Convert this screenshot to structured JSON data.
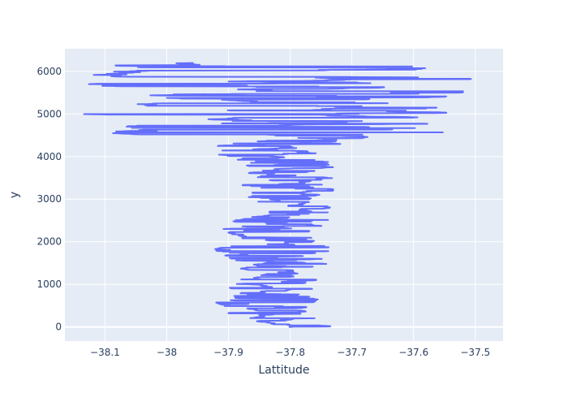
{
  "chart_data": {
    "type": "line",
    "xlabel": "Lattitude",
    "ylabel": "y",
    "xlim": [
      -38.165,
      -37.455
    ],
    "ylim": [
      -330,
      6530
    ],
    "xticks": [
      -38.1,
      -38,
      -37.9,
      -37.8,
      -37.7,
      -37.6,
      -37.5
    ],
    "xtick_labels": [
      "−38.1",
      "−38",
      "−37.9",
      "−37.8",
      "−37.7",
      "−37.6",
      "−37.5"
    ],
    "yticks": [
      0,
      1000,
      2000,
      3000,
      4000,
      5000,
      6000
    ],
    "ytick_labels": [
      "0",
      "1000",
      "2000",
      "3000",
      "4000",
      "5000",
      "6000"
    ],
    "grid": true,
    "series": [
      {
        "color": "#636efa",
        "n_points": 6200,
        "envelope": [
          {
            "y": 0,
            "lo": -37.86,
            "hi": -37.72
          },
          {
            "y": 200,
            "lo": -37.9,
            "hi": -37.75
          },
          {
            "y": 400,
            "lo": -37.93,
            "hi": -37.78
          },
          {
            "y": 600,
            "lo": -37.92,
            "hi": -37.76
          },
          {
            "y": 800,
            "lo": -37.88,
            "hi": -37.74
          },
          {
            "y": 1000,
            "lo": -37.91,
            "hi": -37.74
          },
          {
            "y": 1200,
            "lo": -37.9,
            "hi": -37.75
          },
          {
            "y": 1400,
            "lo": -37.88,
            "hi": -37.74
          },
          {
            "y": 1600,
            "lo": -37.9,
            "hi": -37.71
          },
          {
            "y": 1800,
            "lo": -37.93,
            "hi": -37.72
          },
          {
            "y": 2000,
            "lo": -37.87,
            "hi": -37.76
          },
          {
            "y": 2200,
            "lo": -37.92,
            "hi": -37.75
          },
          {
            "y": 2400,
            "lo": -37.92,
            "hi": -37.73
          },
          {
            "y": 2600,
            "lo": -37.86,
            "hi": -37.73
          },
          {
            "y": 2800,
            "lo": -37.84,
            "hi": -37.7
          },
          {
            "y": 3000,
            "lo": -37.86,
            "hi": -37.74
          },
          {
            "y": 3200,
            "lo": -37.89,
            "hi": -37.73
          },
          {
            "y": 3400,
            "lo": -37.87,
            "hi": -37.73
          },
          {
            "y": 3600,
            "lo": -37.88,
            "hi": -37.73
          },
          {
            "y": 3800,
            "lo": -37.89,
            "hi": -37.7
          },
          {
            "y": 4000,
            "lo": -37.92,
            "hi": -37.75
          },
          {
            "y": 4200,
            "lo": -37.93,
            "hi": -37.72
          },
          {
            "y": 4400,
            "lo": -37.88,
            "hi": -37.7
          },
          {
            "y": 4600,
            "lo": -38.16,
            "hi": -37.51
          },
          {
            "y": 4800,
            "lo": -38.1,
            "hi": -37.58
          },
          {
            "y": 5000,
            "lo": -38.16,
            "hi": -37.46
          },
          {
            "y": 5200,
            "lo": -38.1,
            "hi": -37.56
          },
          {
            "y": 5400,
            "lo": -38.16,
            "hi": -37.52
          },
          {
            "y": 5600,
            "lo": -38.12,
            "hi": -37.52
          },
          {
            "y": 5800,
            "lo": -38.16,
            "hi": -37.5
          },
          {
            "y": 6000,
            "lo": -38.16,
            "hi": -37.57
          },
          {
            "y": 6200,
            "lo": -38.05,
            "hi": -37.51
          }
        ]
      }
    ]
  }
}
